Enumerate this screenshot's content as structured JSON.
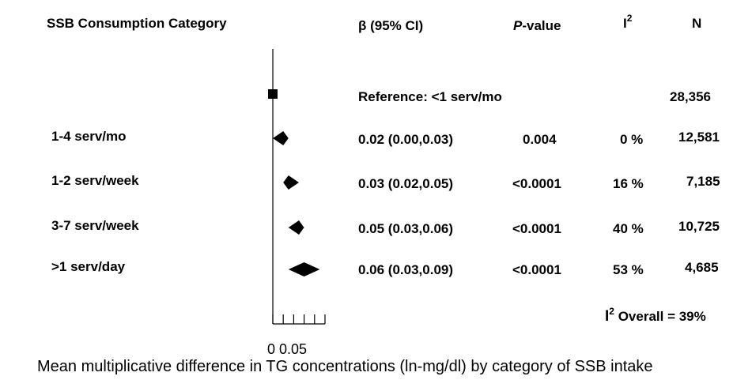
{
  "headers": {
    "category": "SSB Consumption Category",
    "beta": "β (95% CI)",
    "p_italic": "P",
    "p_rest": "-value",
    "i_base": "I",
    "i_sup": "2",
    "n": "N"
  },
  "reference": {
    "label": "Reference: <1 serv/mo",
    "n": "28,356"
  },
  "rows": [
    {
      "label": "1-4 serv/mo",
      "beta": "0.02 (0.00,0.03)",
      "p": "0.004",
      "i2": "0 %",
      "n": "12,581"
    },
    {
      "label": "1-2 serv/week",
      "beta": "0.03 (0.02,0.05)",
      "p": "<0.0001",
      "i2": "16 %",
      "n": "7,185"
    },
    {
      "label": "3-7 serv/week",
      "beta": "0.05 (0.03,0.06)",
      "p": "<0.0001",
      "i2": "40 %",
      "n": "10,725"
    },
    {
      "label": ">1 serv/day",
      "beta": "0.06 (0.03,0.09)",
      "p": "<0.0001",
      "i2": "53 %",
      "n": "4,685"
    }
  ],
  "overall": {
    "i_base": "I",
    "i_sup": "2",
    "text": " Overall = 39%"
  },
  "axis": {
    "tick_labels": "0 0.05"
  },
  "caption": "Mean multiplicative difference in TG concentrations (ln-mg/dl) by category of SSB intake",
  "chart_data": {
    "type": "forest",
    "categories": [
      "Reference: <1 serv/mo",
      "1-4 serv/mo",
      "1-2 serv/week",
      "3-7 serv/week",
      ">1 serv/day"
    ],
    "estimates": [
      0,
      0.02,
      0.03,
      0.05,
      0.06
    ],
    "ci_lower": [
      0,
      0.0,
      0.02,
      0.03,
      0.03
    ],
    "ci_upper": [
      0,
      0.03,
      0.05,
      0.06,
      0.09
    ],
    "xlim": [
      0,
      0.1
    ],
    "xlabel": "Mean multiplicative difference in TG concentrations (ln-mg/dl) by category of SSB intake"
  }
}
